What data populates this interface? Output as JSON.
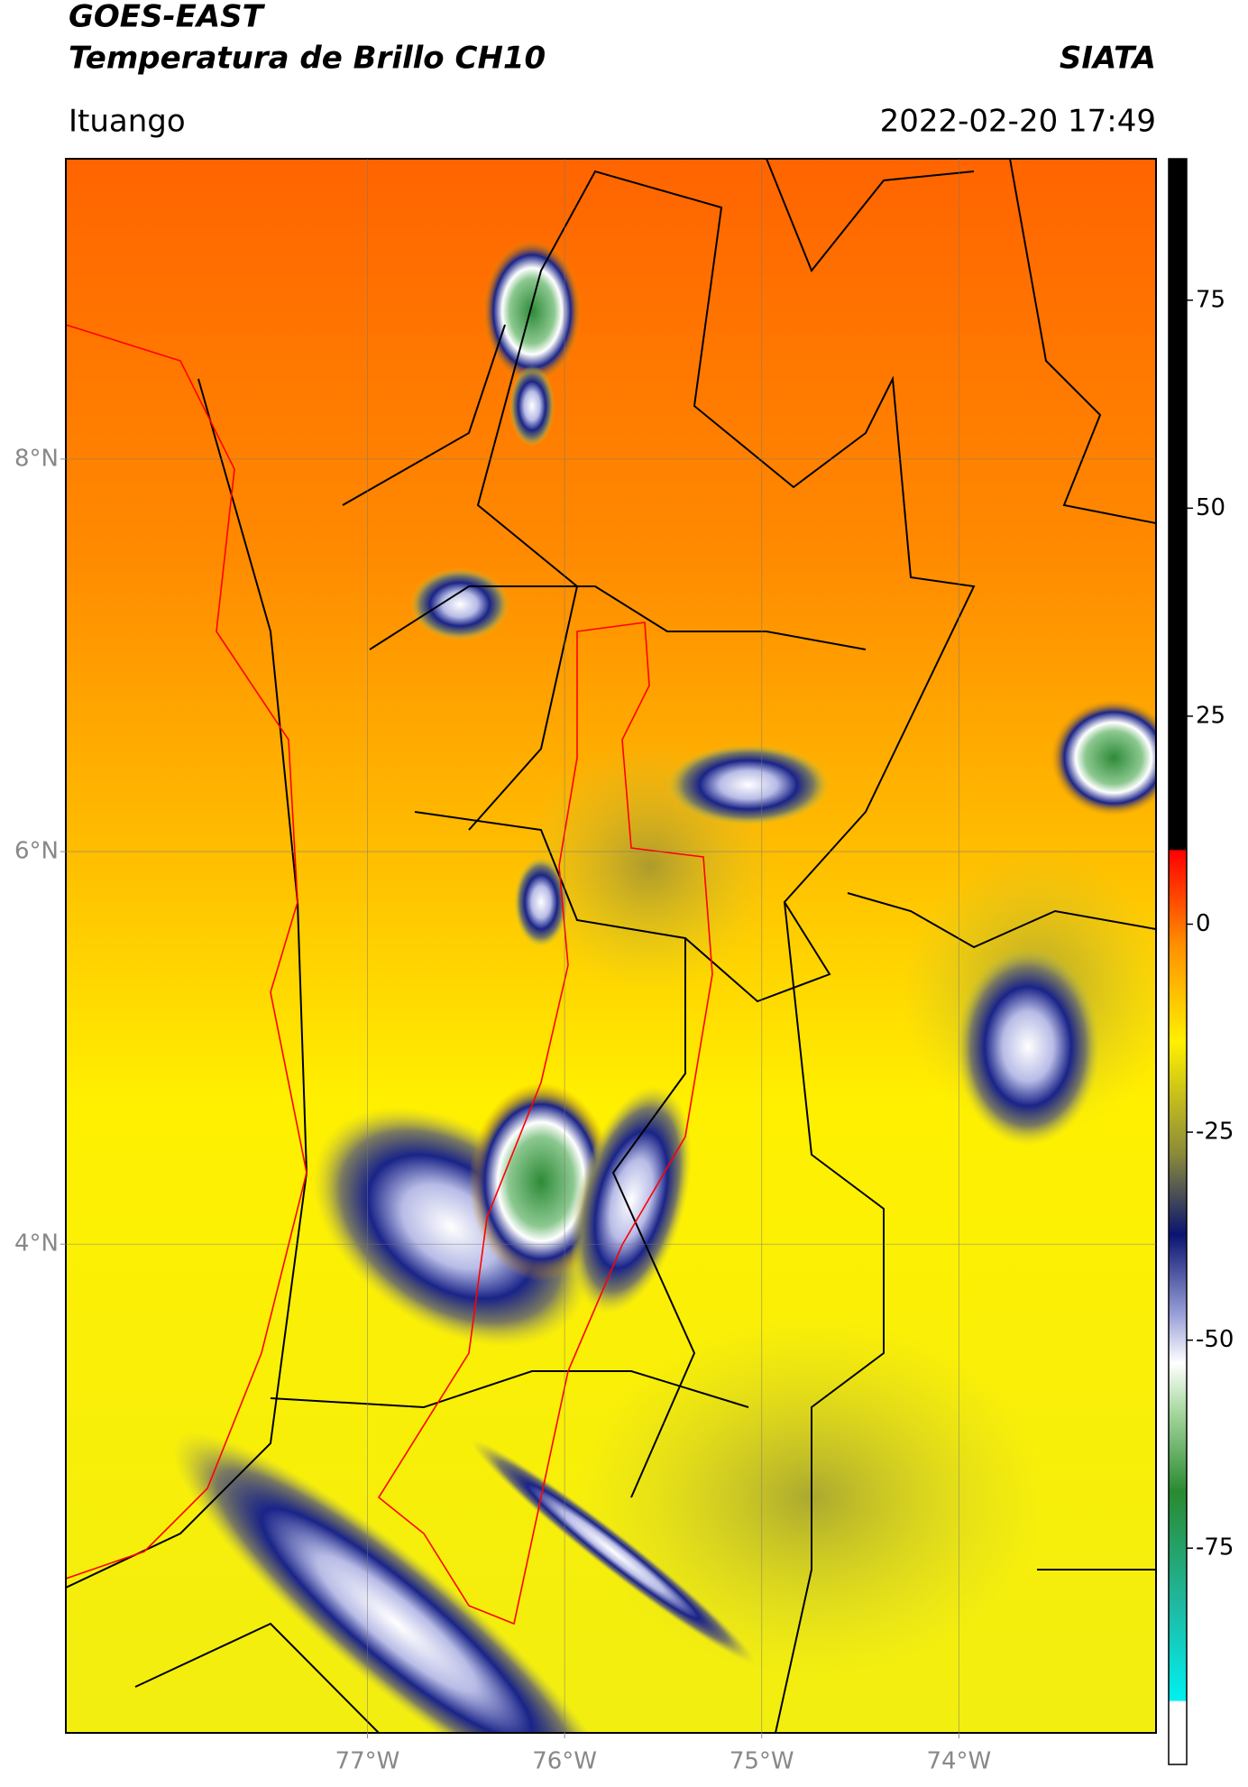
{
  "header": {
    "title": "GOES-EAST",
    "subtitle": "Temperatura de Brillo CH10",
    "agency": "SIATA",
    "location": "Ituango",
    "datetime": "2022-02-20 17:49"
  },
  "map": {
    "xlim": [
      -78.53,
      -73.0
    ],
    "ylim": [
      1.51,
      9.53
    ],
    "xticks": [
      {
        "value": -77,
        "label": "77°W"
      },
      {
        "value": -76,
        "label": "76°W"
      },
      {
        "value": -75,
        "label": "75°W"
      },
      {
        "value": -74,
        "label": "74°W"
      }
    ],
    "yticks": [
      {
        "value": 4,
        "label": "4°N"
      },
      {
        "value": 6,
        "label": "6°N"
      },
      {
        "value": 8,
        "label": "8°N"
      }
    ]
  },
  "colorbar": {
    "lim": [
      -101,
      92
    ],
    "ticks": [
      -75,
      -50,
      -25,
      0,
      25,
      50,
      75
    ]
  }
}
